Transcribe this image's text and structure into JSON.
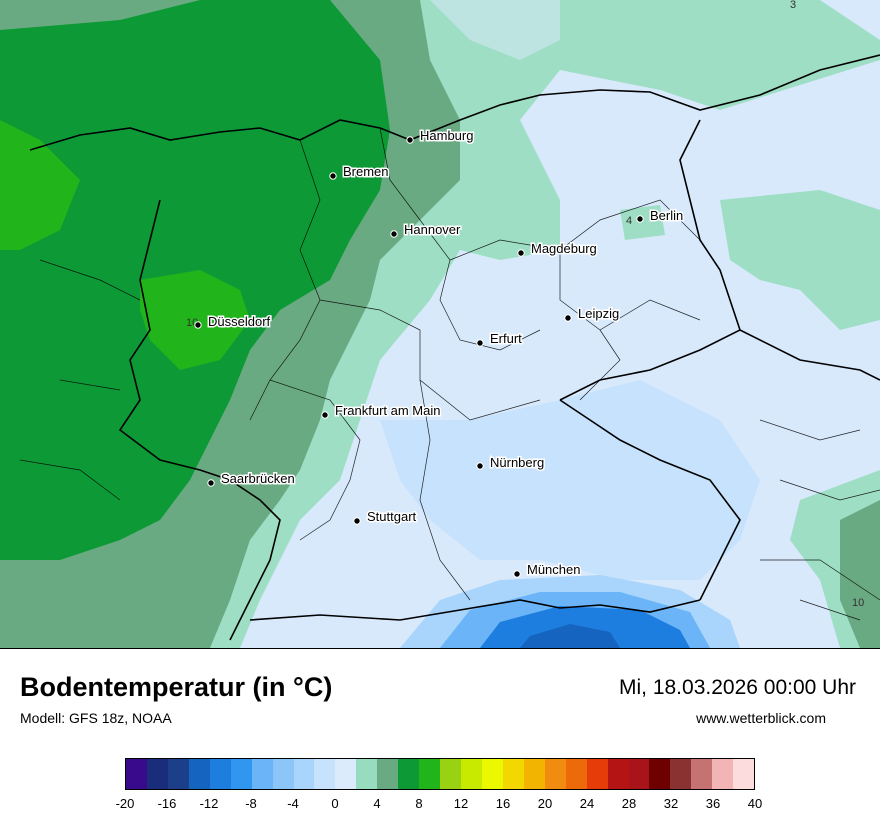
{
  "title": "Bodentemperatur (in °C)",
  "model": "Modell: GFS 18z, NOAA",
  "datetime": "Mi, 18.03.2026 00:00 Uhr",
  "site": "www.wetterblick.com",
  "cities": [
    {
      "name": "Hamburg"
    },
    {
      "name": "Bremen"
    },
    {
      "name": "Hannover"
    },
    {
      "name": "Berlin"
    },
    {
      "name": "Magdeburg"
    },
    {
      "name": "Düsseldorf"
    },
    {
      "name": "Leipzig"
    },
    {
      "name": "Erfurt"
    },
    {
      "name": "Frankfurt am Main"
    },
    {
      "name": "Nürnberg"
    },
    {
      "name": "Saarbrücken"
    },
    {
      "name": "Stuttgart"
    },
    {
      "name": "München"
    }
  ],
  "contour_labels": [
    "3",
    "4",
    "10",
    "10"
  ],
  "legend": {
    "colors": [
      "#3a0a8c",
      "#1a2d7a",
      "#1c3f8a",
      "#1565c0",
      "#1e7ee0",
      "#3096f0",
      "#6ab4f7",
      "#8cc6f9",
      "#a9d4fb",
      "#c6e2fc",
      "#dcebfc",
      "#98dcc0",
      "#6aaa82",
      "#0d9a36",
      "#22b41b",
      "#98d212",
      "#c8ea00",
      "#ecf800",
      "#f2d800",
      "#f2b400",
      "#f08c10",
      "#ec6a0a",
      "#e63c0a",
      "#b41414",
      "#a8141a",
      "#6e0000",
      "#8a3232",
      "#c47272",
      "#f2b4b4",
      "#fcdcdc"
    ],
    "ticks": [
      "-20",
      "-16",
      "-12",
      "-8",
      "-4",
      "0",
      "4",
      "8",
      "12",
      "16",
      "20",
      "24",
      "28",
      "32",
      "36",
      "40"
    ]
  }
}
